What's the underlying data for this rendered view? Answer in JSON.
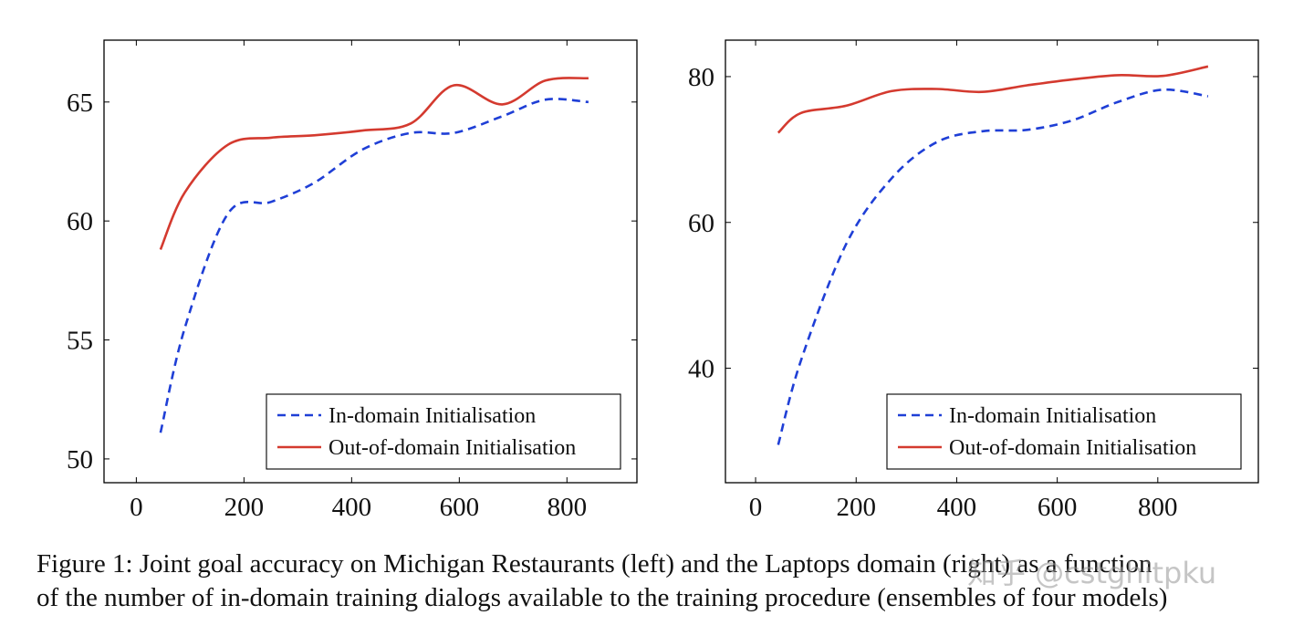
{
  "chart_data": [
    {
      "type": "line",
      "xlim": [
        -60,
        930
      ],
      "ylim": [
        49,
        67.6
      ],
      "xticks": [
        0,
        200,
        400,
        600,
        800
      ],
      "yticks": [
        50,
        55,
        60,
        65
      ],
      "legend_position": "bottom-right",
      "series": [
        {
          "name": "In-domain Initialisation",
          "color": "#1f3fd6",
          "dash": true,
          "x": [
            45,
            90,
            170,
            250,
            330,
            420,
            510,
            590,
            680,
            760,
            840
          ],
          "y": [
            51.1,
            55.5,
            60.3,
            60.8,
            61.6,
            63.0,
            63.7,
            63.7,
            64.4,
            65.1,
            65.0
          ]
        },
        {
          "name": "Out-of-domain Initialisation",
          "color": "#d43a2f",
          "dash": false,
          "x": [
            45,
            90,
            170,
            250,
            330,
            420,
            510,
            590,
            680,
            760,
            840
          ],
          "y": [
            58.8,
            61.2,
            63.2,
            63.5,
            63.6,
            63.8,
            64.1,
            65.7,
            64.9,
            65.9,
            66.0
          ]
        }
      ]
    },
    {
      "type": "line",
      "xlim": [
        -60,
        1000
      ],
      "ylim": [
        24.3,
        85
      ],
      "xticks": [
        0,
        200,
        400,
        600,
        800
      ],
      "yticks": [
        40,
        60,
        80
      ],
      "legend_position": "bottom-right",
      "series": [
        {
          "name": "In-domain Initialisation",
          "color": "#1f3fd6",
          "dash": true,
          "x": [
            45,
            90,
            180,
            270,
            360,
            450,
            540,
            630,
            720,
            810,
            900
          ],
          "y": [
            29.5,
            41.0,
            57.0,
            66.0,
            71.0,
            72.5,
            72.7,
            74.0,
            76.5,
            78.2,
            77.3
          ]
        },
        {
          "name": "Out-of-domain Initialisation",
          "color": "#d43a2f",
          "dash": false,
          "x": [
            45,
            90,
            180,
            270,
            360,
            450,
            540,
            630,
            720,
            810,
            900
          ],
          "y": [
            72.3,
            75.0,
            76.0,
            78.0,
            78.3,
            77.9,
            78.8,
            79.6,
            80.2,
            80.1,
            81.4
          ]
        }
      ]
    }
  ],
  "caption": {
    "line1": "Figure 1: Joint goal accuracy on Michigan Restaurants (left) and the Laptops domain (right) as a function",
    "line2": "of the number of in-domain training dialogs available to the training procedure (ensembles of four models)"
  },
  "watermark": "知乎 @cstghitpku"
}
